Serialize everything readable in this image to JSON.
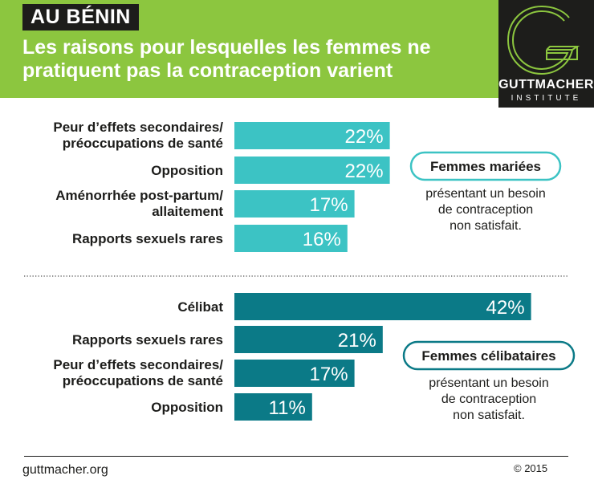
{
  "header": {
    "tag": "AU BÉNIN",
    "title": "Les raisons pour lesquelles les femmes ne pratiquent pas la contraception varient",
    "bg_color": "#8cc63f"
  },
  "logo": {
    "name": "GUTTMACHER",
    "sub": "INSTITUTE"
  },
  "chart_data": [
    {
      "type": "bar",
      "orientation": "horizontal",
      "group_label": "Femmes mariées",
      "note": [
        "présentant un besoin",
        "de contraception",
        "non satisfait."
      ],
      "color": "#3cc3c4",
      "categories": [
        [
          "Peur d’effets secondaires/",
          "préoccupations de santé"
        ],
        [
          "Opposition"
        ],
        [
          "Aménorrhée post-partum/",
          "allaitement"
        ],
        [
          "Rapports sexuels rares"
        ]
      ],
      "values": [
        22,
        22,
        17,
        16
      ],
      "value_labels": [
        "22%",
        "22%",
        "17%",
        "16%"
      ],
      "unit": "%"
    },
    {
      "type": "bar",
      "orientation": "horizontal",
      "group_label": "Femmes célibataires",
      "note": [
        "présentant un besoin",
        "de contraception",
        "non satisfait."
      ],
      "color": "#0b7a87",
      "categories": [
        [
          "Célibat"
        ],
        [
          "Rapports sexuels rares"
        ],
        [
          "Peur d’effets secondaires/",
          "préoccupations de santé"
        ],
        [
          "Opposition"
        ]
      ],
      "values": [
        42,
        21,
        17,
        11
      ],
      "value_labels": [
        "42%",
        "21%",
        "17%",
        "11%"
      ],
      "unit": "%"
    }
  ],
  "footer": {
    "url": "guttmacher.org",
    "copyright": "© 2015"
  }
}
